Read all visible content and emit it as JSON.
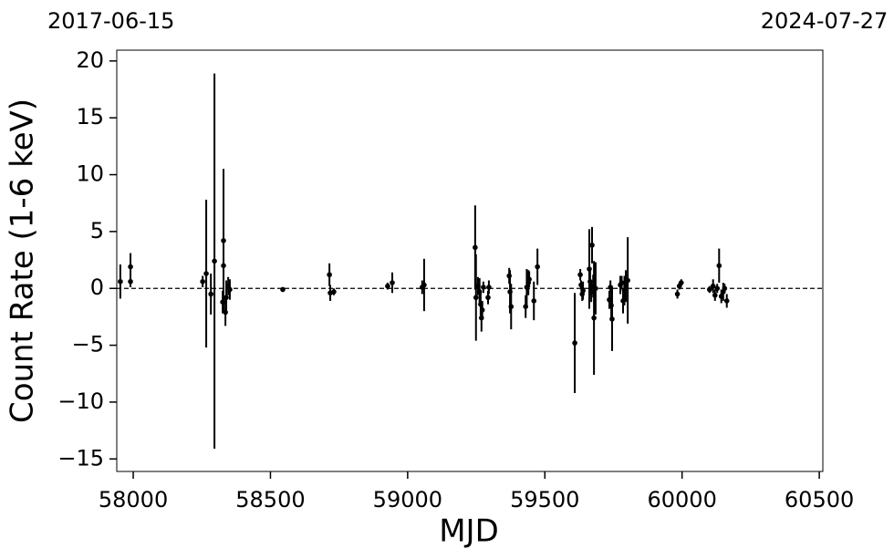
{
  "chart_data": {
    "type": "errorbar",
    "x_label": "MJD",
    "y_label": "Count Rate (1-6 keV)",
    "xlim": [
      57940,
      60513
    ],
    "ylim": [
      -16.1,
      20.95
    ],
    "xticks": [
      58000,
      58500,
      59000,
      59500,
      60000,
      60500
    ],
    "yticks": [
      {
        "value": -15,
        "label": "−15"
      },
      {
        "value": -10,
        "label": "−10"
      },
      {
        "value": -5,
        "label": "−5"
      },
      0,
      5,
      10,
      15,
      20
    ],
    "top_ticks": [
      {
        "value": 57919,
        "label": "2017-06-15"
      },
      {
        "value": 60518,
        "label": "2024-07-27"
      }
    ],
    "hline": 0,
    "color": "#000000",
    "x": [
      57953,
      57990,
      57990,
      58253,
      58266,
      58283,
      58296,
      58326,
      58329,
      58329,
      58336,
      58339,
      58346,
      58352,
      58545,
      58715,
      58718,
      58731,
      58927,
      58944,
      59053,
      59060,
      59246,
      59249,
      59256,
      59262,
      59266,
      59269,
      59272,
      59276,
      59293,
      59296,
      59370,
      59373,
      59377,
      59430,
      59434,
      59440,
      59443,
      59460,
      59473,
      59609,
      59629,
      59632,
      59636,
      59639,
      59662,
      59665,
      59669,
      59672,
      59676,
      59679,
      59685,
      59735,
      59739,
      59742,
      59745,
      59775,
      59780,
      59785,
      59790,
      59795,
      59802,
      59983,
      59990,
      59997,
      60100,
      60113,
      60120,
      60128,
      60135,
      60143,
      60150,
      60155,
      60163
    ],
    "values": [
      0.6,
      1.9,
      0.6,
      0.6,
      1.3,
      -0.5,
      2.4,
      -1.2,
      4.2,
      2.0,
      -2.1,
      -0.8,
      0.2,
      -0.1,
      -0.1,
      1.2,
      -0.4,
      -0.3,
      0.2,
      0.5,
      0.1,
      0.3,
      3.6,
      -0.8,
      0.2,
      -0.3,
      -1.4,
      -2.6,
      -1.9,
      0.1,
      -0.8,
      0.1,
      1.1,
      -0.3,
      -1.6,
      -1.6,
      0.1,
      0.5,
      0.8,
      -1.1,
      1.9,
      -4.8,
      1.2,
      0.3,
      -0.5,
      -0.2,
      1.7,
      0.6,
      -0.3,
      3.8,
      0.2,
      -2.6,
      0.0,
      -1.0,
      0.1,
      -1.5,
      -2.7,
      0.3,
      0.5,
      -1.1,
      -0.2,
      0.2,
      0.7,
      -0.5,
      0.2,
      0.5,
      -0.1,
      0.2,
      -0.6,
      0.0,
      2.0,
      -0.7,
      -0.3,
      0.0,
      -1.1
    ],
    "errors": [
      1.5,
      1.2,
      0.5,
      0.5,
      6.5,
      1.8,
      16.5,
      1.0,
      6.3,
      0.8,
      1.2,
      1.5,
      0.8,
      0.9,
      0.2,
      1.0,
      0.7,
      0.3,
      0.3,
      0.9,
      0.6,
      2.3,
      3.7,
      3.8,
      0.8,
      1.2,
      1.0,
      1.2,
      0.8,
      0.5,
      0.6,
      0.6,
      0.7,
      1.9,
      2.0,
      1.0,
      1.6,
      1.1,
      0.7,
      1.7,
      1.6,
      4.4,
      0.5,
      0.4,
      0.6,
      0.8,
      3.5,
      1.2,
      0.9,
      1.6,
      1.0,
      5.0,
      2.3,
      0.8,
      0.6,
      1.2,
      2.8,
      0.8,
      0.6,
      1.1,
      1.3,
      1.4,
      3.8,
      0.4,
      0.3,
      0.3,
      0.3,
      0.6,
      0.5,
      0.4,
      1.5,
      0.6,
      0.8,
      0.4,
      0.6
    ]
  }
}
